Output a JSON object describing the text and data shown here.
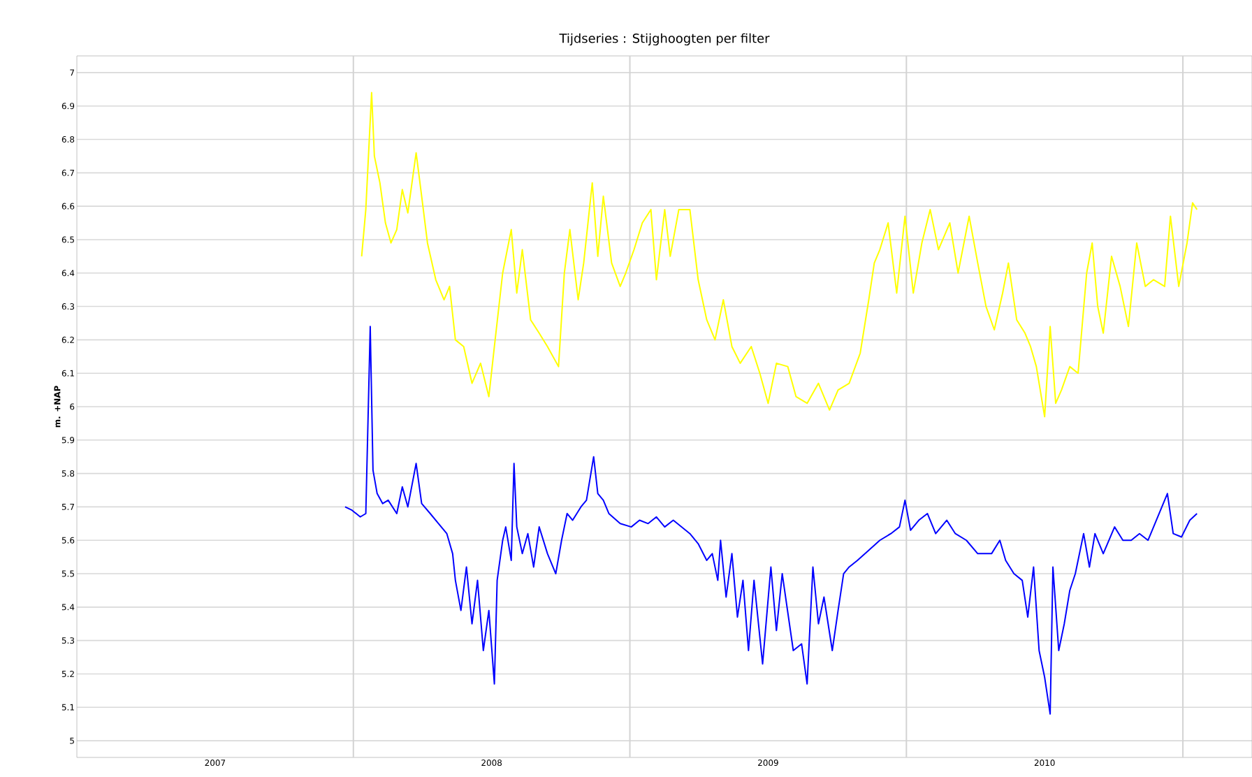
{
  "chart_data": {
    "type": "line",
    "title": "Tijdseries : Stijghoogten per filter",
    "ylabel": "m. +NAP",
    "xlim": [
      2007,
      2011.25
    ],
    "ylim": [
      4.95,
      7.05
    ],
    "xticks": [
      {
        "value": 2007.5,
        "label": "2007"
      },
      {
        "value": 2008.5,
        "label": "2008"
      },
      {
        "value": 2009.5,
        "label": "2009"
      },
      {
        "value": 2010.5,
        "label": "2010"
      }
    ],
    "yticks": [
      5,
      5.1,
      5.2,
      5.3,
      5.4,
      5.5,
      5.6,
      5.7,
      5.8,
      5.9,
      6,
      6.1,
      6.2,
      6.3,
      6.4,
      6.5,
      6.6,
      6.7,
      6.8,
      6.9,
      7
    ],
    "grid": "y",
    "marker": "none",
    "line_style": "solid",
    "ref_lines": [
      {
        "axis": "x",
        "value": 2008,
        "color": "#d3d3d3"
      },
      {
        "axis": "x",
        "value": 2009,
        "color": "#d3d3d3"
      },
      {
        "axis": "x",
        "value": 2010,
        "color": "#d3d3d3"
      },
      {
        "axis": "x",
        "value": 2011,
        "color": "#d3d3d3"
      }
    ],
    "series": [
      {
        "color": "#ffff00",
        "x": [
          2008.03,
          2008.045,
          2008.066,
          2008.076,
          2008.096,
          2008.116,
          2008.136,
          2008.157,
          2008.177,
          2008.197,
          2008.227,
          2008.247,
          2008.268,
          2008.298,
          2008.328,
          2008.348,
          2008.369,
          2008.399,
          2008.429,
          2008.46,
          2008.49,
          2008.51,
          2008.54,
          2008.571,
          2008.591,
          2008.611,
          2008.641,
          2008.672,
          2008.702,
          2008.742,
          2008.763,
          2008.783,
          2008.813,
          2008.833,
          2008.864,
          2008.884,
          2008.904,
          2008.934,
          2008.965,
          2008.985,
          2009.015,
          2009.045,
          2009.076,
          2009.096,
          2009.126,
          2009.146,
          2009.177,
          2009.217,
          2009.247,
          2009.278,
          2009.308,
          2009.338,
          2009.369,
          2009.399,
          2009.439,
          2009.47,
          2009.5,
          2009.53,
          2009.571,
          2009.601,
          2009.641,
          2009.682,
          2009.722,
          2009.753,
          2009.793,
          2009.833,
          2009.864,
          2009.884,
          2009.904,
          2009.934,
          2009.965,
          2009.995,
          2010.025,
          2010.056,
          2010.086,
          2010.116,
          2010.157,
          2010.187,
          2010.227,
          2010.258,
          2010.288,
          2010.318,
          2010.348,
          2010.369,
          2010.399,
          2010.429,
          2010.449,
          2010.47,
          2010.5,
          2010.52,
          2010.54,
          2010.561,
          2010.591,
          2010.621,
          2010.652,
          2010.672,
          2010.692,
          2010.712,
          2010.742,
          2010.773,
          2010.803,
          2010.833,
          2010.864,
          2010.894,
          2010.934,
          2010.955,
          2010.985,
          2011.015,
          2011.035,
          2011.051
        ],
        "values": [
          6.45,
          6.59,
          6.94,
          6.75,
          6.67,
          6.55,
          6.49,
          6.53,
          6.65,
          6.58,
          6.76,
          6.63,
          6.49,
          6.38,
          6.32,
          6.36,
          6.2,
          6.18,
          6.07,
          6.13,
          6.03,
          6.18,
          6.4,
          6.53,
          6.34,
          6.47,
          6.26,
          6.22,
          6.18,
          6.12,
          6.4,
          6.53,
          6.32,
          6.43,
          6.67,
          6.45,
          6.63,
          6.43,
          6.36,
          6.4,
          6.47,
          6.55,
          6.59,
          6.38,
          6.59,
          6.45,
          6.59,
          6.59,
          6.38,
          6.26,
          6.2,
          6.32,
          6.18,
          6.13,
          6.18,
          6.1,
          6.01,
          6.13,
          6.12,
          6.03,
          6.01,
          6.07,
          5.99,
          6.05,
          6.07,
          6.16,
          6.32,
          6.43,
          6.47,
          6.55,
          6.34,
          6.57,
          6.34,
          6.49,
          6.59,
          6.47,
          6.55,
          6.4,
          6.57,
          6.43,
          6.3,
          6.23,
          6.34,
          6.43,
          6.26,
          6.22,
          6.18,
          6.12,
          5.97,
          6.24,
          6.01,
          6.05,
          6.12,
          6.1,
          6.4,
          6.49,
          6.3,
          6.22,
          6.45,
          6.36,
          6.24,
          6.49,
          6.36,
          6.38,
          6.36,
          6.57,
          6.36,
          6.49,
          6.61,
          6.59
        ]
      },
      {
        "color": "#0000ff",
        "x": [
          2007.97,
          2007.995,
          2008.025,
          2008.045,
          2008.061,
          2008.071,
          2008.086,
          2008.106,
          2008.126,
          2008.157,
          2008.177,
          2008.197,
          2008.227,
          2008.247,
          2008.278,
          2008.308,
          2008.338,
          2008.359,
          2008.369,
          2008.389,
          2008.409,
          2008.429,
          2008.449,
          2008.47,
          2008.49,
          2008.51,
          2008.52,
          2008.54,
          2008.551,
          2008.571,
          2008.581,
          2008.591,
          2008.611,
          2008.631,
          2008.652,
          2008.672,
          2008.702,
          2008.732,
          2008.753,
          2008.773,
          2008.793,
          2008.823,
          2008.843,
          2008.869,
          2008.884,
          2008.904,
          2008.924,
          2008.965,
          2009.005,
          2009.035,
          2009.066,
          2009.096,
          2009.126,
          2009.157,
          2009.187,
          2009.217,
          2009.247,
          2009.278,
          2009.298,
          2009.318,
          2009.328,
          2009.348,
          2009.369,
          2009.389,
          2009.409,
          2009.429,
          2009.449,
          2009.48,
          2009.51,
          2009.53,
          2009.551,
          2009.591,
          2009.621,
          2009.641,
          2009.662,
          2009.682,
          2009.702,
          2009.732,
          2009.753,
          2009.773,
          2009.793,
          2009.823,
          2009.864,
          2009.904,
          2009.944,
          2009.975,
          2009.995,
          2010.015,
          2010.045,
          2010.076,
          2010.106,
          2010.146,
          2010.177,
          2010.217,
          2010.258,
          2010.308,
          2010.338,
          2010.359,
          2010.389,
          2010.419,
          2010.439,
          2010.46,
          2010.48,
          2010.5,
          2010.52,
          2010.53,
          2010.551,
          2010.571,
          2010.591,
          2010.611,
          2010.641,
          2010.662,
          2010.682,
          2010.712,
          2010.753,
          2010.783,
          2010.813,
          2010.843,
          2010.874,
          2010.944,
          2010.965,
          2010.995,
          2011.025,
          2011.051
        ],
        "values": [
          5.7,
          5.69,
          5.67,
          5.68,
          6.24,
          5.81,
          5.74,
          5.71,
          5.72,
          5.68,
          5.76,
          5.7,
          5.83,
          5.71,
          5.68,
          5.65,
          5.62,
          5.56,
          5.48,
          5.39,
          5.52,
          5.35,
          5.48,
          5.27,
          5.39,
          5.17,
          5.48,
          5.6,
          5.64,
          5.54,
          5.83,
          5.64,
          5.56,
          5.62,
          5.52,
          5.64,
          5.56,
          5.5,
          5.6,
          5.68,
          5.66,
          5.7,
          5.72,
          5.85,
          5.74,
          5.72,
          5.68,
          5.65,
          5.64,
          5.66,
          5.65,
          5.67,
          5.64,
          5.66,
          5.64,
          5.62,
          5.59,
          5.54,
          5.56,
          5.48,
          5.6,
          5.43,
          5.56,
          5.37,
          5.48,
          5.27,
          5.48,
          5.23,
          5.52,
          5.33,
          5.5,
          5.27,
          5.29,
          5.17,
          5.52,
          5.35,
          5.43,
          5.27,
          5.39,
          5.5,
          5.52,
          5.54,
          5.57,
          5.6,
          5.62,
          5.64,
          5.72,
          5.63,
          5.66,
          5.68,
          5.62,
          5.66,
          5.62,
          5.6,
          5.56,
          5.56,
          5.6,
          5.54,
          5.5,
          5.48,
          5.37,
          5.52,
          5.27,
          5.19,
          5.08,
          5.52,
          5.27,
          5.35,
          5.45,
          5.5,
          5.62,
          5.52,
          5.62,
          5.56,
          5.64,
          5.6,
          5.6,
          5.62,
          5.6,
          5.74,
          5.62,
          5.61,
          5.66,
          5.68
        ]
      }
    ]
  }
}
